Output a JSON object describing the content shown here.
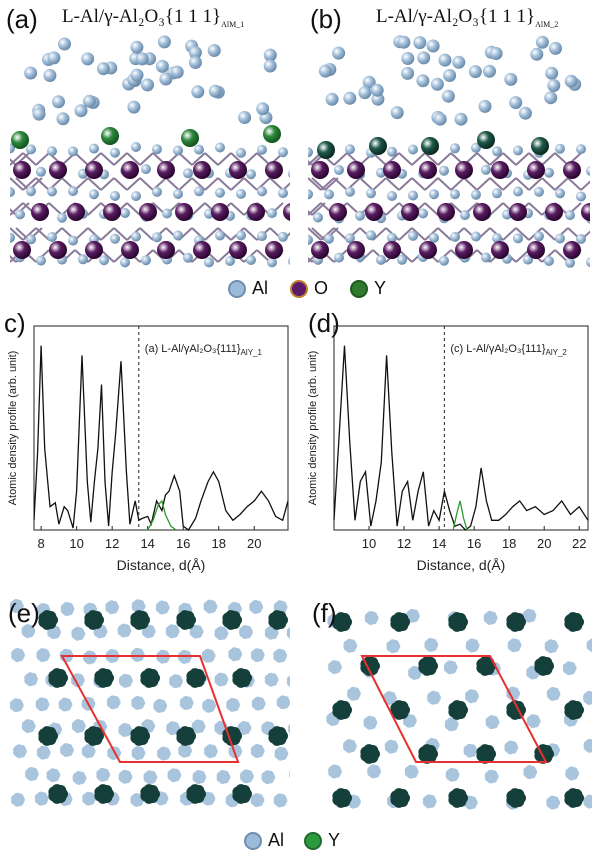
{
  "panels": {
    "a": {
      "label": "(a)",
      "title_main": "L-Al/γ-Al₂O₃{1 1 1}",
      "title_sub": "AlM_1"
    },
    "b": {
      "label": "(b)",
      "title_main": "L-Al/γ-Al₂O₃{1 1 1}",
      "title_sub": "AlM_2"
    },
    "c": {
      "label": "c)"
    },
    "d": {
      "label": "(d)"
    },
    "e": {
      "label": "(e)"
    },
    "f": {
      "label": "(f)"
    }
  },
  "legend_top": [
    {
      "label": "Al",
      "color": "#9bbbd8",
      "border": "#6f8fb0"
    },
    {
      "label": "O",
      "color": "#5a1a6a",
      "border": "#c08030"
    },
    {
      "label": "Y",
      "color": "#2e7a2e",
      "border": "#1e5a1e"
    }
  ],
  "legend_bottom": [
    {
      "label": "Al",
      "color": "#9bbbd8",
      "border": "#6f8fb0"
    },
    {
      "label": "Y",
      "color": "#2e9a3e",
      "border": "#1e6a2e"
    }
  ],
  "colors": {
    "al_atom": "#a9c4dd",
    "o_atom": "#4a1450",
    "y_atom": "#1f6f3a",
    "y_dark": "#154a3a",
    "cell": "#e83030",
    "profile": "#111111",
    "y_profile": "#2a9a2a"
  },
  "chart_data": [
    {
      "type": "line",
      "ylabel": "Atomic density profile (arb. unit)",
      "xlabel": "Distance, d(Å)",
      "annotation_main": "(a) L-Al/γAl₂O₃{111}",
      "annotation_sub": "AlY_1",
      "xlim": [
        7.6,
        21.9
      ],
      "xticks": [
        8,
        10,
        12,
        14,
        16,
        18,
        20
      ],
      "divider_x": 13.5,
      "series": [
        {
          "color": "#111111",
          "x": [
            7.6,
            7.8,
            8.0,
            8.2,
            8.5,
            8.8,
            9.0,
            9.3,
            9.5,
            9.8,
            10.0,
            10.3,
            10.6,
            10.8,
            11.0,
            11.2,
            11.4,
            11.6,
            11.8,
            12.0,
            12.2,
            12.5,
            12.8,
            13.0,
            13.3,
            13.5,
            13.7,
            14.0,
            14.2,
            14.5,
            14.8,
            15.0,
            15.2,
            15.5,
            15.8,
            16.0,
            16.3,
            16.7,
            17.0,
            17.4,
            17.7,
            18.0,
            18.4,
            18.8,
            19.2,
            19.6,
            20.0,
            20.4,
            20.8,
            21.2,
            21.6,
            21.9
          ],
          "y": [
            0.05,
            0.4,
            0.95,
            0.42,
            0.12,
            0.14,
            0.03,
            0.12,
            0.1,
            0.01,
            0.2,
            0.9,
            0.25,
            0.04,
            0.25,
            0.42,
            0.75,
            0.25,
            0.02,
            0.3,
            0.5,
            0.87,
            0.3,
            0.03,
            0.15,
            0.05,
            0.06,
            0.07,
            0.03,
            0.15,
            0.1,
            0.18,
            0.2,
            0.28,
            0.2,
            0.02,
            0.0,
            0.06,
            0.15,
            0.25,
            0.3,
            0.25,
            0.1,
            0.05,
            0.08,
            0.12,
            0.15,
            0.2,
            0.15,
            0.07,
            0.05,
            0.15
          ]
        },
        {
          "color": "#2a9a2a",
          "x": [
            14.0,
            14.3,
            14.6,
            14.8,
            15.0,
            15.3,
            15.6
          ],
          "y": [
            0.0,
            0.05,
            0.13,
            0.15,
            0.08,
            0.02,
            0.0
          ]
        }
      ]
    },
    {
      "type": "line",
      "ylabel": "Atomic density profile (arb. unit)",
      "xlabel": "Distance, d(Å)",
      "annotation_main": "(c) L-Al/γAl₂O₃{111}",
      "annotation_sub": "AlY_2",
      "xlim": [
        8.0,
        22.5
      ],
      "xticks": [
        10,
        12,
        14,
        16,
        18,
        20,
        22
      ],
      "divider_x": 14.3,
      "series": [
        {
          "color": "#111111",
          "x": [
            8.0,
            8.3,
            8.6,
            8.9,
            9.2,
            9.5,
            9.8,
            10.1,
            10.4,
            10.7,
            11.0,
            11.3,
            11.6,
            11.9,
            12.2,
            12.5,
            12.8,
            13.1,
            13.4,
            13.7,
            14.0,
            14.3,
            14.6,
            14.9,
            15.2,
            15.5,
            15.8,
            16.1,
            16.4,
            16.7,
            17.0,
            17.4,
            17.8,
            18.2,
            18.6,
            19.0,
            19.5,
            20.0,
            20.5,
            21.0,
            21.5,
            22.0,
            22.5
          ],
          "y": [
            0.05,
            0.5,
            0.95,
            0.45,
            0.05,
            0.25,
            0.3,
            0.02,
            0.15,
            0.35,
            0.9,
            0.4,
            0.02,
            0.2,
            0.25,
            0.05,
            0.2,
            0.3,
            0.02,
            0.1,
            0.05,
            0.2,
            0.1,
            0.02,
            0.03,
            0.0,
            0.02,
            0.12,
            0.32,
            0.15,
            0.05,
            0.05,
            0.08,
            0.12,
            0.15,
            0.1,
            0.12,
            0.08,
            0.1,
            0.15,
            0.08,
            0.12,
            0.05
          ]
        },
        {
          "color": "#2a9a2a",
          "x": [
            14.8,
            15.0,
            15.2,
            15.4,
            15.6
          ],
          "y": [
            0.0,
            0.08,
            0.15,
            0.06,
            0.0
          ]
        }
      ]
    }
  ]
}
